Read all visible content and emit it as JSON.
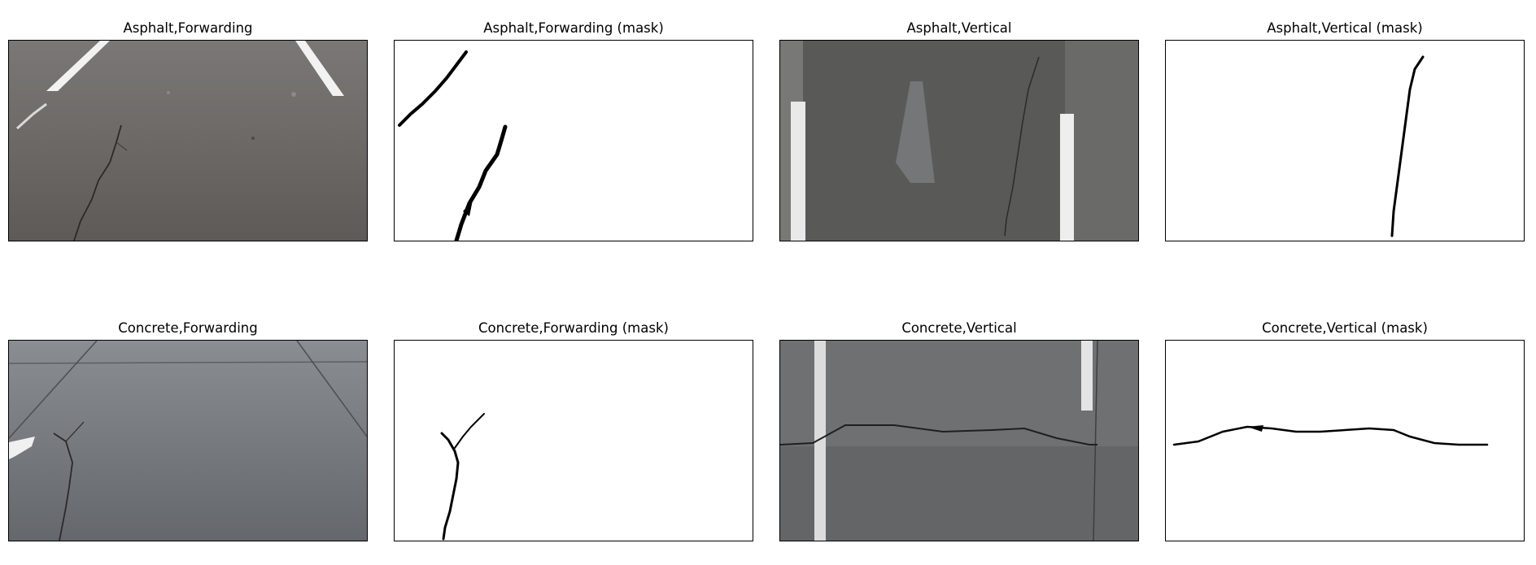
{
  "panels": [
    {
      "title": "Asphalt,Forwarding"
    },
    {
      "title": "Asphalt,Forwarding (mask)"
    },
    {
      "title": "Asphalt,Vertical"
    },
    {
      "title": "Asphalt,Vertical (mask)"
    },
    {
      "title": "Concrete,Forwarding"
    },
    {
      "title": "Concrete,Forwarding (mask)"
    },
    {
      "title": "Concrete,Vertical"
    },
    {
      "title": "Concrete,Vertical (mask)"
    }
  ]
}
